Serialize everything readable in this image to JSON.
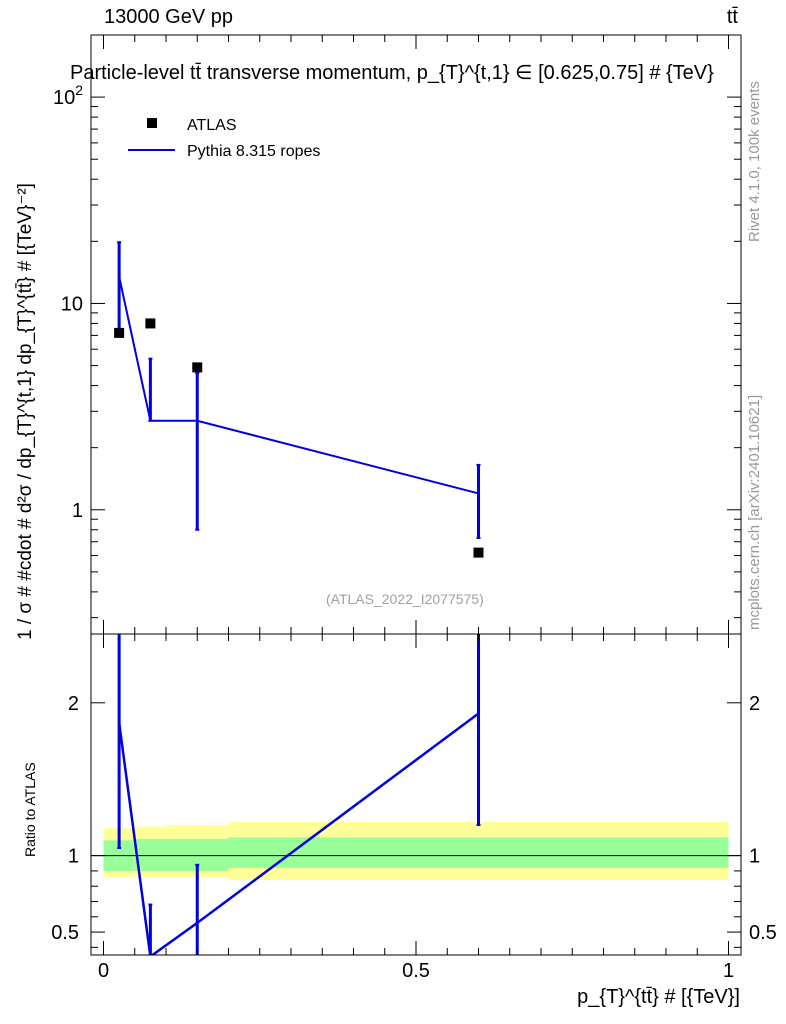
{
  "header": {
    "energy_label": "13000 GeV pp",
    "process_label": "tt̄"
  },
  "side_labels": {
    "rivet": "Rivet 4.1.0, 100k events",
    "mcplots": "mcplots.cern.ch [arXiv:2401.10621]"
  },
  "watermark": "(ATLAS_2022_I2077575)",
  "chart_data": [
    {
      "type": "scatter",
      "title": "Particle-level tt̄ transverse momentum, p_{T}^{t,1} ∈ [0.625,0.75] # {TeV}",
      "ylabel": "1 / σ # #cdot # d²σ / dp_{T}^{t,1} dp_{T}^{tt̄} # [{TeV}⁻²]",
      "xlabel": "p_{T}^{tt̄} # [{TeV}]",
      "yscale": "log",
      "ylim": [
        0.25,
        200
      ],
      "xlim": [
        -0.02,
        1.02
      ],
      "y_ticks": [
        "1",
        "10",
        "10²"
      ],
      "legend_position": "top-left",
      "series": [
        {
          "name": "ATLAS",
          "color": "#000000",
          "marker": "square",
          "x": [
            0.025,
            0.075,
            0.15,
            0.6
          ],
          "y": [
            7.2,
            8.0,
            4.9,
            0.62
          ]
        },
        {
          "name": "Pythia 8.315 ropes",
          "color": "#0000e0",
          "marker": "line",
          "x": [
            0.025,
            0.075,
            0.15,
            0.6
          ],
          "y": [
            13.5,
            2.7,
            2.7,
            1.2
          ],
          "yerr_low": [
            7.3,
            2.7,
            0.8,
            0.73
          ],
          "yerr_high": [
            19.8,
            5.4,
            4.6,
            1.65
          ]
        }
      ]
    },
    {
      "type": "line",
      "ylabel": "Ratio to ATLAS",
      "xlim": [
        -0.02,
        1.02
      ],
      "ylim": [
        0.35,
        2.45
      ],
      "x_ticks": [
        "0",
        "0.5",
        "1"
      ],
      "y_ticks": [
        "0.5",
        "1",
        "2"
      ],
      "reference_line": 1.0,
      "bands": {
        "bins": [
          [
            0.0,
            0.05
          ],
          [
            0.05,
            0.1
          ],
          [
            0.1,
            0.2
          ],
          [
            0.2,
            1.0
          ]
        ],
        "green": [
          [
            0.9,
            1.1
          ],
          [
            0.9,
            1.11
          ],
          [
            0.9,
            1.11
          ],
          [
            0.92,
            1.12
          ]
        ],
        "yellow": [
          [
            0.86,
            1.18
          ],
          [
            0.86,
            1.19
          ],
          [
            0.86,
            1.2
          ],
          [
            0.84,
            1.22
          ]
        ],
        "green_color": "#99ff99",
        "yellow_color": "#ffff99"
      },
      "series": [
        {
          "name": "Pythia 8.315 ropes",
          "color": "#0000e0",
          "x": [
            0.025,
            0.075,
            0.15,
            0.6
          ],
          "y": [
            1.87,
            0.34,
            0.56,
            1.93
          ],
          "yerr_low": [
            1.05,
            0.0,
            0.0,
            1.2
          ],
          "yerr_high": [
            2.8,
            0.68,
            0.94,
            2.5
          ]
        }
      ]
    }
  ]
}
